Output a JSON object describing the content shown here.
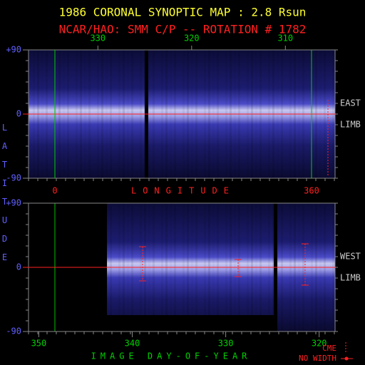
{
  "title": "1986 CORONAL SYNOPTIC MAP : 2.8 Rsun",
  "subtitle": "NCAR/HAO: SMM C/P -- ROTATION # 1782",
  "chart_data": [
    {
      "type": "heatmap",
      "y_label": "LATITUDE",
      "x_label": "LONGITUDE",
      "xlim": [
        -37,
        393
      ],
      "xticks": [
        0,
        360
      ],
      "x2lim": [
        337.4,
        304.7
      ],
      "x2ticks": [
        330,
        320,
        310
      ],
      "ylim": [
        -90,
        90
      ],
      "yticks": [
        {
          "value": 90,
          "label": "+90"
        },
        0,
        -90
      ],
      "side_labels": [
        "EAST",
        "LIMB"
      ]
    },
    {
      "type": "heatmap",
      "x_label": "IMAGE DAY-OF-YEAR",
      "xlim": [
        351.1,
        318.3
      ],
      "xticks": [
        350,
        340,
        330,
        320
      ],
      "ylim": [
        -90,
        90
      ],
      "yticks": [
        {
          "value": 90,
          "label": "+90"
        },
        0,
        -90
      ],
      "side_labels": [
        "WEST",
        "LIMB"
      ],
      "legend": [
        "CME",
        "NO WIDTH"
      ]
    }
  ]
}
